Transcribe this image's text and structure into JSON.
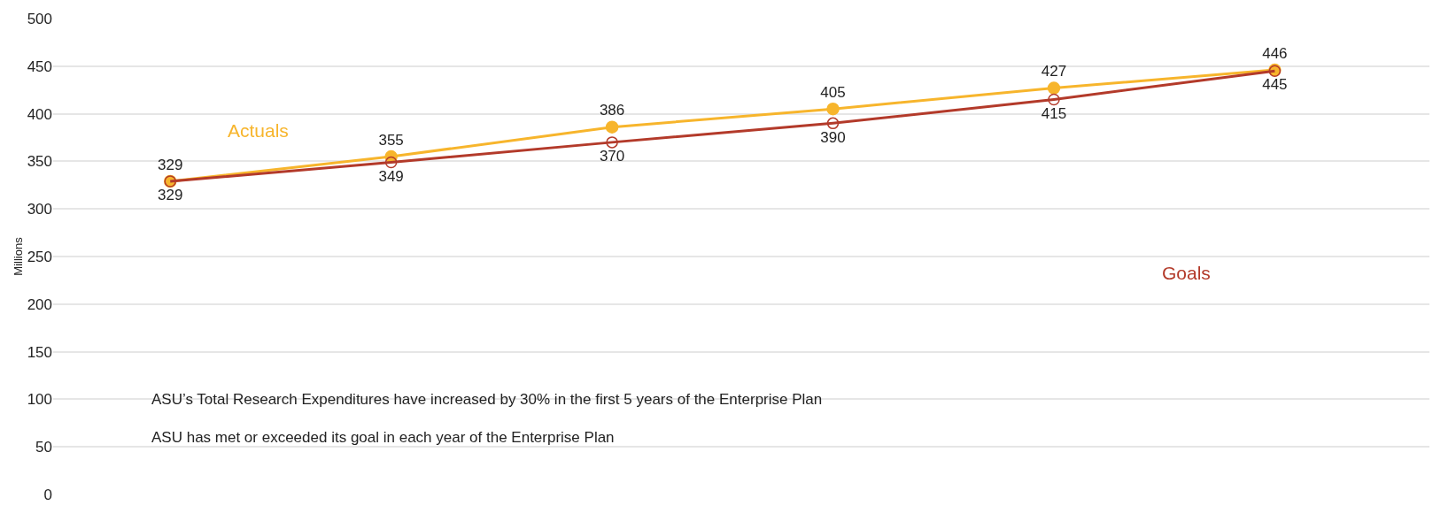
{
  "chart_data": {
    "type": "line",
    "ylabel": "Millions",
    "categories": [
      null,
      null,
      null,
      null,
      null,
      null
    ],
    "series": [
      {
        "name": "Actuals",
        "color": "#f7b52c",
        "values": [
          329,
          355,
          386,
          405,
          427,
          446
        ]
      },
      {
        "name": "Goals",
        "color": "#b33a2a",
        "values": [
          329,
          349,
          370,
          390,
          415,
          445
        ]
      }
    ],
    "ylim": [
      0,
      500
    ],
    "yticks": [
      0,
      50,
      100,
      150,
      200,
      250,
      300,
      350,
      400,
      450,
      500
    ],
    "grid": "y",
    "legend": false,
    "marker": "circle",
    "line_style": "solid",
    "data_labels": true,
    "annotations": [
      "ASU’s Total Research Expenditures have increased by 30% in the first 5 years of the Enterprise Plan",
      "ASU has met or exceeded its goal in each year of the Enterprise Plan"
    ]
  }
}
